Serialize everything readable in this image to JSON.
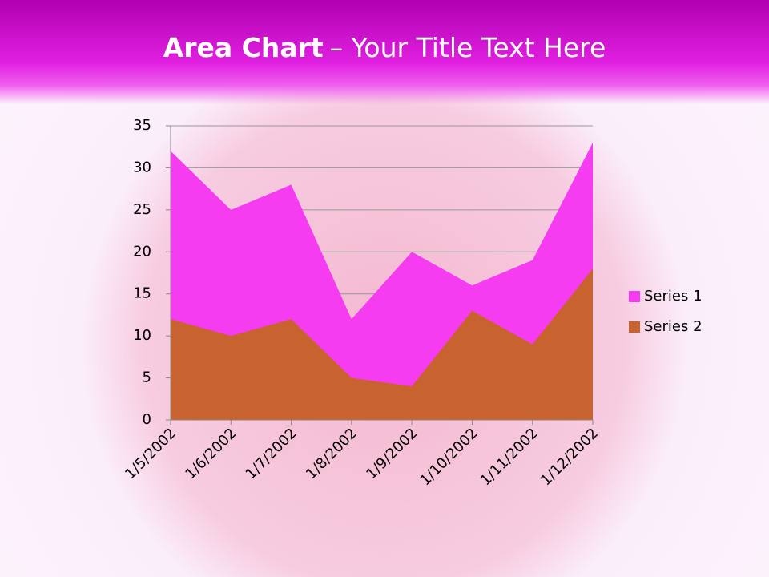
{
  "slide_title": {
    "bold": "Area Chart",
    "rest": "– Your Title Text Here"
  },
  "chart_data": {
    "type": "area",
    "categories": [
      "1/5/2002",
      "1/6/2002",
      "1/7/2002",
      "1/8/2002",
      "1/9/2002",
      "1/10/2002",
      "1/11/2002",
      "1/12/2002"
    ],
    "series": [
      {
        "name": "Series 1",
        "color": "#f53cf0",
        "values": [
          32,
          25,
          28,
          12,
          20,
          16,
          19,
          33
        ]
      },
      {
        "name": "Series 2",
        "color": "#c8622e",
        "values": [
          12,
          10,
          12,
          5,
          4,
          13,
          9,
          18
        ]
      }
    ],
    "ylim": [
      0,
      35
    ],
    "yticks": [
      0,
      5,
      10,
      15,
      20,
      25,
      30,
      35
    ],
    "grid": true,
    "legend": "right"
  }
}
